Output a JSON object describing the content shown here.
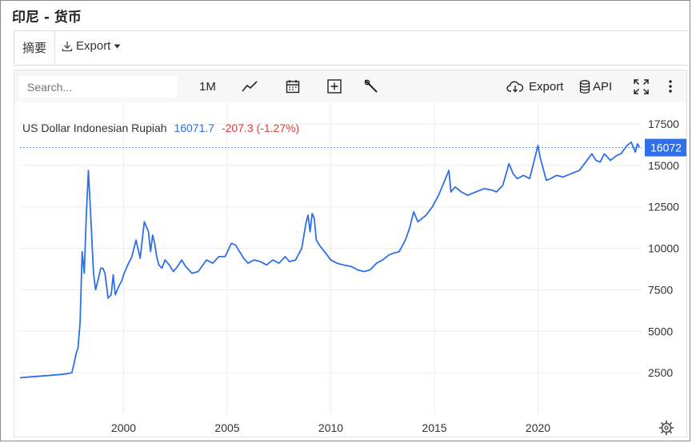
{
  "page_title": "印尼 - 货币",
  "tabs": {
    "summary": "摘要",
    "export": "Export"
  },
  "toolbar": {
    "search_placeholder": "Search...",
    "period": "1M",
    "export": "Export",
    "api": "API"
  },
  "icons": {
    "download": "download-icon",
    "caret": "caret-down-icon",
    "line_chart": "line-chart-icon",
    "calendar": "calendar-icon",
    "compare": "add-compare-icon",
    "wrench": "wrench-icon",
    "cloud": "cloud-download-icon",
    "database": "database-icon",
    "fullscreen": "fullscreen-icon",
    "more": "more-vertical-icon",
    "settings": "gear-icon"
  },
  "colors": {
    "line": "#2f6fe8",
    "positive": "#2f6fe8",
    "negative": "#e03b3b",
    "badge": "#2f6fe8"
  },
  "legend": {
    "name": "US Dollar Indonesian Rupiah",
    "last": "16071.7",
    "change": "-207.3 (-1.27%)"
  },
  "chart_data": {
    "type": "line",
    "series": [
      {
        "name": "US Dollar Indonesian Rupiah",
        "x": [
          1995.0,
          1995.5,
          1996.0,
          1996.5,
          1997.0,
          1997.3,
          1997.5,
          1997.6,
          1997.7,
          1997.8,
          1997.9,
          1998.0,
          1998.1,
          1998.2,
          1998.3,
          1998.45,
          1998.55,
          1998.65,
          1998.75,
          1998.9,
          1999.0,
          1999.1,
          1999.25,
          1999.4,
          1999.5,
          1999.6,
          1999.7,
          1999.8,
          1999.9,
          2000.0,
          2000.2,
          2000.4,
          2000.6,
          2000.8,
          2001.0,
          2001.2,
          2001.3,
          2001.4,
          2001.5,
          2001.6,
          2001.7,
          2001.85,
          2002.0,
          2002.2,
          2002.4,
          2002.6,
          2002.8,
          2003.0,
          2003.3,
          2003.6,
          2004.0,
          2004.3,
          2004.6,
          2004.9,
          2005.2,
          2005.4,
          2005.6,
          2005.8,
          2006.0,
          2006.3,
          2006.6,
          2006.9,
          2007.2,
          2007.5,
          2007.8,
          2008.0,
          2008.3,
          2008.6,
          2008.8,
          2008.9,
          2009.0,
          2009.1,
          2009.2,
          2009.3,
          2009.5,
          2009.7,
          2010.0,
          2010.3,
          2010.6,
          2011.0,
          2011.3,
          2011.6,
          2011.9,
          2012.2,
          2012.5,
          2012.8,
          2013.0,
          2013.3,
          2013.6,
          2013.8,
          2014.0,
          2014.2,
          2014.4,
          2014.6,
          2014.9,
          2015.2,
          2015.5,
          2015.7,
          2015.8,
          2016.0,
          2016.3,
          2016.6,
          2017.0,
          2017.4,
          2017.8,
          2018.0,
          2018.3,
          2018.6,
          2018.8,
          2019.0,
          2019.3,
          2019.6,
          2020.0,
          2020.1,
          2020.25,
          2020.4,
          2020.6,
          2020.9,
          2021.2,
          2021.6,
          2022.0,
          2022.3,
          2022.6,
          2022.8,
          2023.0,
          2023.2,
          2023.5,
          2023.8,
          2024.0,
          2024.3,
          2024.5,
          2024.7,
          2024.8,
          2024.9
        ],
        "y": [
          2200,
          2250,
          2300,
          2350,
          2400,
          2450,
          2500,
          3000,
          3600,
          4000,
          5500,
          9800,
          8500,
          12000,
          14700,
          11000,
          8500,
          7500,
          8000,
          8800,
          8800,
          8500,
          7000,
          7200,
          8400,
          7200,
          7500,
          7800,
          8000,
          8400,
          9000,
          9500,
          10500,
          9400,
          11600,
          11000,
          9800,
          10800,
          10300,
          9500,
          9000,
          8800,
          9300,
          9000,
          8600,
          8900,
          9300,
          8900,
          8500,
          8600,
          9300,
          9100,
          9500,
          9500,
          10300,
          10200,
          9800,
          9400,
          9100,
          9300,
          9200,
          9000,
          9300,
          9100,
          9500,
          9200,
          9300,
          10000,
          11500,
          12000,
          11000,
          12100,
          11800,
          10500,
          10100,
          9800,
          9300,
          9100,
          9000,
          8900,
          8700,
          8600,
          8700,
          9100,
          9300,
          9600,
          9700,
          9800,
          10500,
          11200,
          12200,
          11600,
          11800,
          12000,
          12500,
          13200,
          14100,
          14700,
          13400,
          13700,
          13400,
          13200,
          13400,
          13600,
          13500,
          13400,
          13800,
          15100,
          14500,
          14200,
          14400,
          14200,
          16200,
          15500,
          14800,
          14100,
          14200,
          14400,
          14300,
          14500,
          14700,
          15200,
          15700,
          15300,
          15200,
          15700,
          15300,
          15600,
          15700,
          16200,
          16400,
          15800,
          16300,
          16100
        ]
      }
    ],
    "xticks": [
      2000,
      2005,
      2010,
      2015,
      2020
    ],
    "yticks": [
      2500,
      5000,
      7500,
      10000,
      12500,
      15000,
      17500
    ],
    "xlim": [
      1995.0,
      2025.0
    ],
    "ylim": [
      0,
      18800
    ],
    "last_value_label": "16072",
    "last_value": 16072,
    "grid": true
  }
}
